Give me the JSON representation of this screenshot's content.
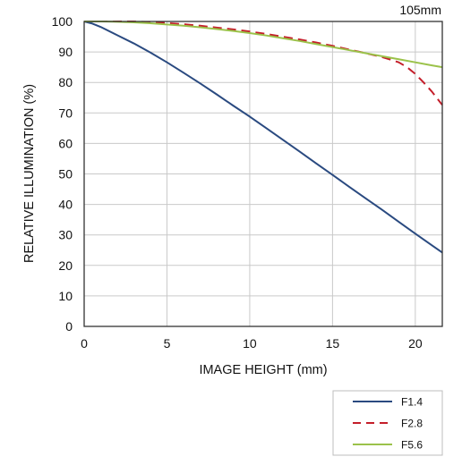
{
  "chart_data": {
    "type": "line",
    "title": "105mm",
    "xlabel": "IMAGE HEIGHT (mm)",
    "ylabel": "RELATIVE ILLUMINATION (%)",
    "xlim": [
      0,
      21.63
    ],
    "ylim": [
      0,
      100
    ],
    "xticks": [
      0,
      5,
      10,
      15,
      20
    ],
    "yticks": [
      0,
      10,
      20,
      30,
      40,
      50,
      60,
      70,
      80,
      90,
      100
    ],
    "grid": true,
    "legend_position": "bottom-right",
    "series": [
      {
        "name": "F1.4",
        "color": "#2a4a80",
        "dash": "solid",
        "x": [
          0,
          0.5,
          1,
          2,
          3,
          4,
          5,
          6,
          7,
          8,
          9,
          10,
          11,
          12,
          13,
          14,
          15,
          16,
          17,
          18,
          19,
          20,
          21,
          21.63
        ],
        "y": [
          100,
          99.3,
          98.2,
          95.5,
          92.8,
          89.8,
          86.6,
          83.2,
          79.7,
          76.1,
          72.4,
          68.8,
          65.0,
          61.2,
          57.4,
          53.5,
          49.7,
          45.8,
          42.0,
          38.2,
          34.3,
          30.4,
          26.6,
          24.2
        ]
      },
      {
        "name": "F2.8",
        "color": "#c41e2a",
        "dash": "dashed",
        "x": [
          0,
          1,
          2,
          3,
          4,
          5,
          6,
          7,
          8,
          9,
          10,
          11,
          12,
          13,
          14,
          15,
          16,
          17,
          18,
          18.5,
          19,
          19.5,
          20,
          20.5,
          21,
          21.63
        ],
        "y": [
          100,
          100,
          100,
          100,
          99.8,
          99.5,
          99.1,
          98.6,
          98.0,
          97.4,
          96.7,
          95.9,
          95.0,
          94.1,
          93.1,
          92.0,
          90.8,
          89.6,
          88.3,
          87.5,
          86.6,
          85.0,
          82.8,
          80.0,
          77.0,
          72.6
        ]
      },
      {
        "name": "F5.6",
        "color": "#9bc24a",
        "dash": "solid",
        "x": [
          0,
          1,
          2,
          3,
          4,
          5,
          6,
          7,
          8,
          9,
          10,
          11,
          12,
          13,
          14,
          15,
          16,
          17,
          18,
          19,
          20,
          21,
          21.63
        ],
        "y": [
          100,
          100,
          99.9,
          99.7,
          99.4,
          99.0,
          98.6,
          98.1,
          97.5,
          96.9,
          96.2,
          95.4,
          94.5,
          93.6,
          92.6,
          91.6,
          90.6,
          89.6,
          88.6,
          87.6,
          86.6,
          85.6,
          85.0
        ]
      }
    ]
  }
}
